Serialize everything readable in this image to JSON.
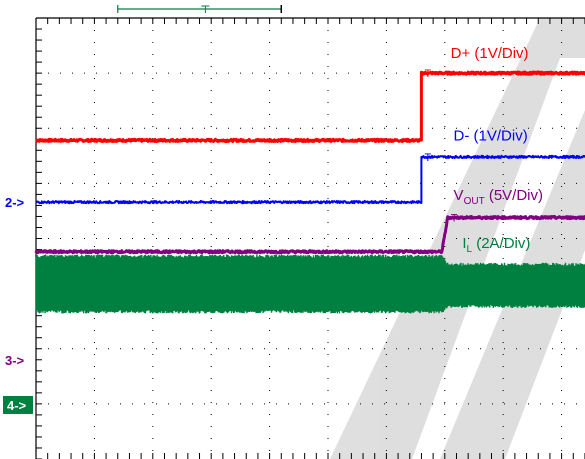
{
  "chart_data": {
    "type": "line",
    "title": "",
    "xlabel": "",
    "ylabel": "",
    "grid": true,
    "x_range": [
      0,
      10
    ],
    "y_range": [
      -4,
      4
    ],
    "time_base_bracket": {
      "start": 1.4,
      "trigger": 2.9,
      "end": 4.2
    },
    "series": [
      {
        "name": "D+ (1V/Div)",
        "color": "#ff0000",
        "x": [
          0,
          6.6,
          6.6,
          10
        ],
        "y": [
          1.78,
          1.78,
          3.0,
          3.0
        ],
        "noise": 0.02,
        "stroke": 3,
        "label": {
          "text": "D+ (1V/Div)",
          "x": 7.1,
          "y": 3.27
        }
      },
      {
        "name": "D- (1V/Div)",
        "color": "#0000ff",
        "x": [
          0,
          6.6,
          6.6,
          10
        ],
        "y": [
          0.66,
          0.66,
          1.48,
          1.48
        ],
        "noise": 0.02,
        "stroke": 2,
        "label": {
          "text": "D- (1V/Div)",
          "x": 7.15,
          "y": 1.78
        }
      },
      {
        "name": "VOUT (5V/Div)",
        "color": "#800080",
        "x": [
          0,
          6.95,
          7.05,
          10
        ],
        "y": [
          -0.24,
          -0.24,
          0.38,
          0.38
        ],
        "noise": 0.02,
        "stroke": 3,
        "label": {
          "text": "V",
          "sub": "OUT",
          "rest": " (5V/Div)",
          "x": 7.15,
          "y": 0.7
        }
      },
      {
        "name": "IL (2A/Div)",
        "color": "#008040",
        "x": [
          0,
          6.95,
          7.05,
          10
        ],
        "y": [
          -0.9,
          -0.9,
          -0.9,
          -0.9
        ],
        "band_top": [
          -0.35,
          -0.35,
          -0.5,
          -0.5
        ],
        "band_bottom": [
          -1.3,
          -1.3,
          -1.2,
          -1.2
        ],
        "stroke": 2,
        "label": {
          "text": "I",
          "sub": "L",
          "rest": " (2A/Div)",
          "x": 7.3,
          "y": -0.17
        }
      }
    ],
    "channel_markers": [
      {
        "label": "2->",
        "color": "#0000ff",
        "y": 0.66
      },
      {
        "label": "3->",
        "color": "#800080",
        "y": -2.2
      },
      {
        "label": "4->",
        "color": "#008040",
        "y": -3.02,
        "filled": true
      }
    ],
    "watermark": "TI"
  }
}
